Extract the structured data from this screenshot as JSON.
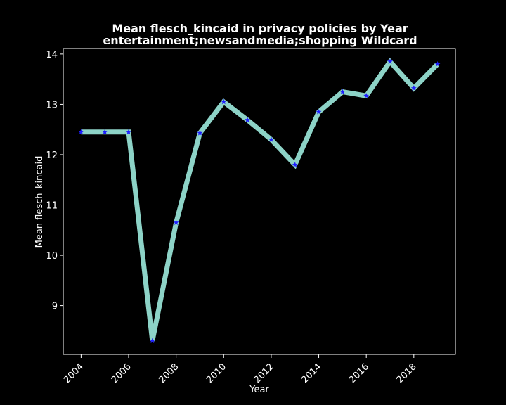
{
  "chart_data": {
    "type": "line",
    "title": "Mean flesch_kincaid in privacy policies by Year",
    "subtitle": "entertainment;newsandmedia;shopping Wildcard",
    "xlabel": "Year",
    "ylabel": "Mean flesch_kincaid",
    "x": [
      2004,
      2005,
      2006,
      2007,
      2008,
      2009,
      2010,
      2011,
      2012,
      2013,
      2014,
      2015,
      2016,
      2017,
      2018,
      2019
    ],
    "series": [
      {
        "values": [
          12.45,
          12.45,
          12.45,
          8.3,
          10.65,
          12.43,
          13.05,
          12.69,
          12.3,
          11.8,
          12.85,
          13.25,
          13.17,
          13.85,
          13.32,
          13.8
        ]
      }
    ],
    "xticks": [
      2004,
      2006,
      2008,
      2010,
      2012,
      2014,
      2016,
      2018
    ],
    "yticks": [
      9,
      10,
      11,
      12,
      13,
      14
    ],
    "xlim": [
      2003.25,
      2019.75
    ],
    "ylim": [
      8.03,
      14.11
    ],
    "grid": false,
    "legend": "none",
    "colors": {
      "background": "#000000",
      "line": "#8dd3c7",
      "marker": "#1f1fff",
      "axis": "#ffffff",
      "text": "#ffffff"
    }
  }
}
